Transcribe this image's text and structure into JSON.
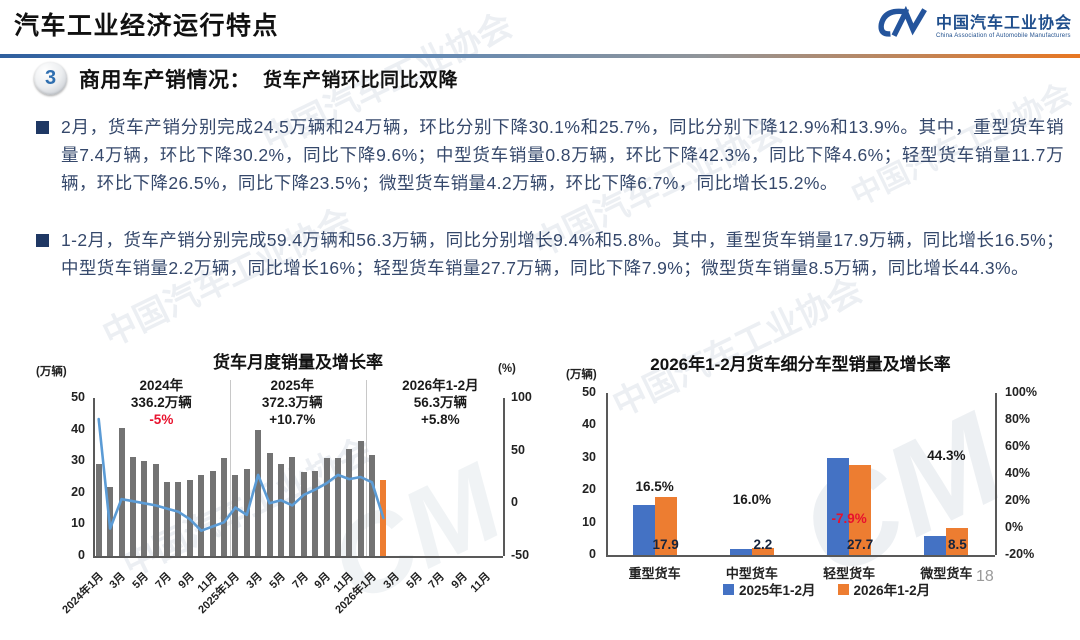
{
  "header": {
    "title": "汽车工业经济运行特点",
    "logo": {
      "org_cn": "中国汽车工业协会",
      "org_en": "China Association of Automobile Manufacturers"
    }
  },
  "section": {
    "badge": "3",
    "title": "商用车产销情况：",
    "subtitle": "货车产销环比同比双降"
  },
  "bullets": [
    {
      "text": "2月，货车产销分别完成24.5万辆和24万辆，环比分别下降30.1%和25.7%，同比分别下降12.9%和13.9%。其中，重型货车销量7.4万辆，环比下降30.2%，同比下降9.6%；中型货车销量0.8万辆，环比下降42.3%，同比下降4.6%；轻型货车销量11.7万辆，环比下降26.5%，同比下降23.5%；微型货车销量4.2万辆，环比下降6.7%，同比增长15.2%。"
    },
    {
      "text": "1-2月，货车产销分别完成59.4万辆和56.3万辆，同比分别增长9.4%和5.8%。其中，重型货车销量17.9万辆，同比增长16.5%；中型货车销量2.2万辆，同比增长16%；轻型货车销量27.7万辆，同比下降7.9%；微型货车销量8.5万辆，同比增长44.3%。"
    }
  ],
  "watermark_text": "中国汽车工业协会",
  "page_number": "18",
  "chart_data": [
    {
      "type": "bar+line",
      "title": "货车月度销量及增长率",
      "left_axis_label": "(万辆)",
      "right_axis_label": "(%)",
      "left_ticks": [
        0,
        10,
        20,
        30,
        40,
        50
      ],
      "left_range": [
        0,
        50
      ],
      "right_ticks": [
        -50,
        0,
        50,
        100
      ],
      "right_range": [
        -50,
        100
      ],
      "months_total": 36,
      "x_labels": [
        "2024年1月",
        "3月",
        "5月",
        "7月",
        "9月",
        "11月",
        "2025年1月",
        "3月",
        "5月",
        "7月",
        "9月",
        "11月",
        "2026年1月",
        "3月",
        "5月",
        "7月",
        "9月",
        "11月"
      ],
      "bars": {
        "name": "月度销量(万辆)",
        "color": "#737373",
        "highlight_color": "#ED7D31",
        "highlight_index": 25,
        "values": [
          29,
          22,
          40.5,
          31.5,
          30,
          29,
          23.5,
          23.5,
          24,
          25.5,
          27,
          31,
          25.5,
          27.5,
          40,
          32.5,
          29,
          31.5,
          26.5,
          27,
          31,
          31,
          34,
          36.5,
          32,
          24
        ]
      },
      "line": {
        "name": "同比增长率(%)",
        "color": "#5B9BD5",
        "values": [
          80,
          -24,
          4,
          2,
          0,
          -2,
          -5,
          -8,
          -15,
          -26,
          -22,
          -18,
          -4,
          -11,
          27,
          0,
          3,
          -2,
          8,
          13,
          19,
          27,
          23,
          25,
          20,
          -13.9
        ]
      },
      "separators_after_month": [
        11,
        23
      ],
      "annotations": [
        {
          "lines": [
            "2024年",
            "336.2万辆",
            "-5%"
          ],
          "colors": [
            "#1a1a1a",
            "#1a1a1a",
            "#e8112d"
          ],
          "anchor_month": 5.5
        },
        {
          "lines": [
            "2025年",
            "372.3万辆",
            "+10.7%"
          ],
          "colors": [
            "#1a1a1a",
            "#1a1a1a",
            "#1a1a1a"
          ],
          "anchor_month": 17
        },
        {
          "lines": [
            "2026年1-2月",
            "56.3万辆",
            "+5.8%"
          ],
          "colors": [
            "#1a1a1a",
            "#1a1a1a",
            "#1a1a1a"
          ],
          "anchor_month": 30
        }
      ]
    },
    {
      "type": "grouped-bar",
      "title": "2026年1-2月货车细分车型销量及增长率",
      "left_axis_label": "(万辆)",
      "left_ticks": [
        0,
        10,
        20,
        30,
        40,
        50
      ],
      "left_range": [
        0,
        50
      ],
      "right_ticks": [
        "-20%",
        "0%",
        "20%",
        "40%",
        "60%",
        "80%",
        "100%"
      ],
      "categories": [
        "重型货车",
        "中型货车",
        "轻型货车",
        "微型货车"
      ],
      "series": [
        {
          "name": "2025年1-2月",
          "color": "#4472C4",
          "values": [
            15.4,
            1.9,
            30.1,
            5.9
          ]
        },
        {
          "name": "2026年1-2月",
          "color": "#ED7D31",
          "values": [
            17.9,
            2.2,
            27.7,
            8.5
          ]
        }
      ],
      "value_labels": [
        "17.9",
        "2.2",
        "27.7",
        "8.5"
      ],
      "growth_labels": [
        {
          "text": "16.5%",
          "color": "#1a1a1a",
          "level": 21
        },
        {
          "text": "16.0%",
          "color": "#1a1a1a",
          "level": 17
        },
        {
          "text": "-7.9%",
          "color": "#e8112d",
          "level": 11
        },
        {
          "text": "44.3%",
          "color": "#1a1a1a",
          "level": 30.5
        }
      ],
      "legend": [
        "2025年1-2月",
        "2026年1-2月"
      ]
    }
  ]
}
